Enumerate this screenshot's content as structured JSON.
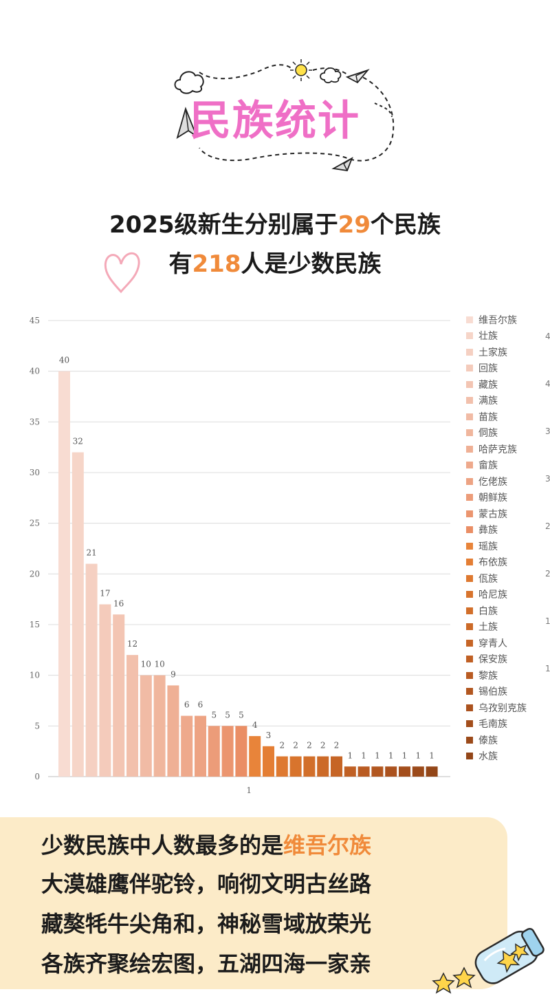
{
  "header": {
    "title": "民族统计"
  },
  "summary": {
    "line1_prefix": "2025级新生分别属于",
    "line1_number": "29",
    "line1_suffix": "个民族",
    "line2_prefix": "有",
    "line2_number": "218",
    "line2_suffix": "人是少数民族"
  },
  "chart_data": {
    "type": "bar",
    "title": "",
    "xlabel": "",
    "ylabel": "",
    "x_tick_labels": [
      "1"
    ],
    "ylim": [
      0,
      45
    ],
    "y_ticks": [
      0,
      5,
      10,
      15,
      20,
      25,
      30,
      35,
      40,
      45
    ],
    "grid": true,
    "legend_position": "right",
    "data_labels": true,
    "series": [
      {
        "name": "维吾尔族",
        "values": [
          40
        ],
        "color": "#f8dcd2"
      },
      {
        "name": "壮族",
        "values": [
          32
        ],
        "color": "#f6d5c8"
      },
      {
        "name": "土家族",
        "values": [
          21
        ],
        "color": "#f5d0c2"
      },
      {
        "name": "回族",
        "values": [
          17
        ],
        "color": "#f4cbbb"
      },
      {
        "name": "藏族",
        "values": [
          16
        ],
        "color": "#f3c5b3"
      },
      {
        "name": "满族",
        "values": [
          12
        ],
        "color": "#f2c0ac"
      },
      {
        "name": "苗族",
        "values": [
          10
        ],
        "color": "#f1bba5"
      },
      {
        "name": "侗族",
        "values": [
          10
        ],
        "color": "#f0b69d"
      },
      {
        "name": "哈萨克族",
        "values": [
          9
        ],
        "color": "#efb095"
      },
      {
        "name": "畲族",
        "values": [
          6
        ],
        "color": "#eea98c"
      },
      {
        "name": "仡佬族",
        "values": [
          6
        ],
        "color": "#eda383"
      },
      {
        "name": "朝鲜族",
        "values": [
          5
        ],
        "color": "#ec9c79"
      },
      {
        "name": "蒙古族",
        "values": [
          5
        ],
        "color": "#eb956f"
      },
      {
        "name": "彝族",
        "values": [
          5
        ],
        "color": "#ea8e65"
      },
      {
        "name": "瑶族",
        "values": [
          4
        ],
        "color": "#e8843a"
      },
      {
        "name": "布依族",
        "values": [
          3
        ],
        "color": "#e47e34"
      },
      {
        "name": "佤族",
        "values": [
          2
        ],
        "color": "#de7930"
      },
      {
        "name": "哈尼族",
        "values": [
          2
        ],
        "color": "#d8742d"
      },
      {
        "name": "白族",
        "values": [
          2
        ],
        "color": "#d26f2a"
      },
      {
        "name": "土族",
        "values": [
          2
        ],
        "color": "#cc6a28"
      },
      {
        "name": "穿青人",
        "values": [
          2
        ],
        "color": "#c66526"
      },
      {
        "name": "保安族",
        "values": [
          1
        ],
        "color": "#c06024"
      },
      {
        "name": "黎族",
        "values": [
          1
        ],
        "color": "#b95b22"
      },
      {
        "name": "锡伯族",
        "values": [
          1
        ],
        "color": "#b25720"
      },
      {
        "name": "乌孜别克族",
        "values": [
          1
        ],
        "color": "#ab521e"
      },
      {
        "name": "毛南族",
        "values": [
          1
        ],
        "color": "#a34e1c"
      },
      {
        "name": "傣族",
        "values": [
          1
        ],
        "color": "#9b4a1a"
      },
      {
        "name": "水族",
        "values": [
          1
        ],
        "color": "#934618"
      }
    ]
  },
  "secondary_axis_fragments": [
    "4",
    "4",
    "3",
    "3",
    "2",
    "2",
    "1",
    "1"
  ],
  "bottom_card": {
    "line1_prefix": "少数民族中人数最多的是",
    "line1_highlight": "维吾尔族",
    "line2": "大漠雄鹰伴驼铃，响彻文明古丝路",
    "line3": "藏獒牦牛尖角和，神秘雪域放荣光",
    "line4": "各族齐聚绘宏图，五湖四海一家亲"
  },
  "colors": {
    "title_pink": "#ef6fc6",
    "highlight_orange": "#f08a3a",
    "card_background": "#fcebc8"
  },
  "icons": [
    "cloud-icon",
    "sun-icon",
    "paper-plane-icon",
    "heart-icon",
    "star-jar-icon",
    "star-icon"
  ]
}
